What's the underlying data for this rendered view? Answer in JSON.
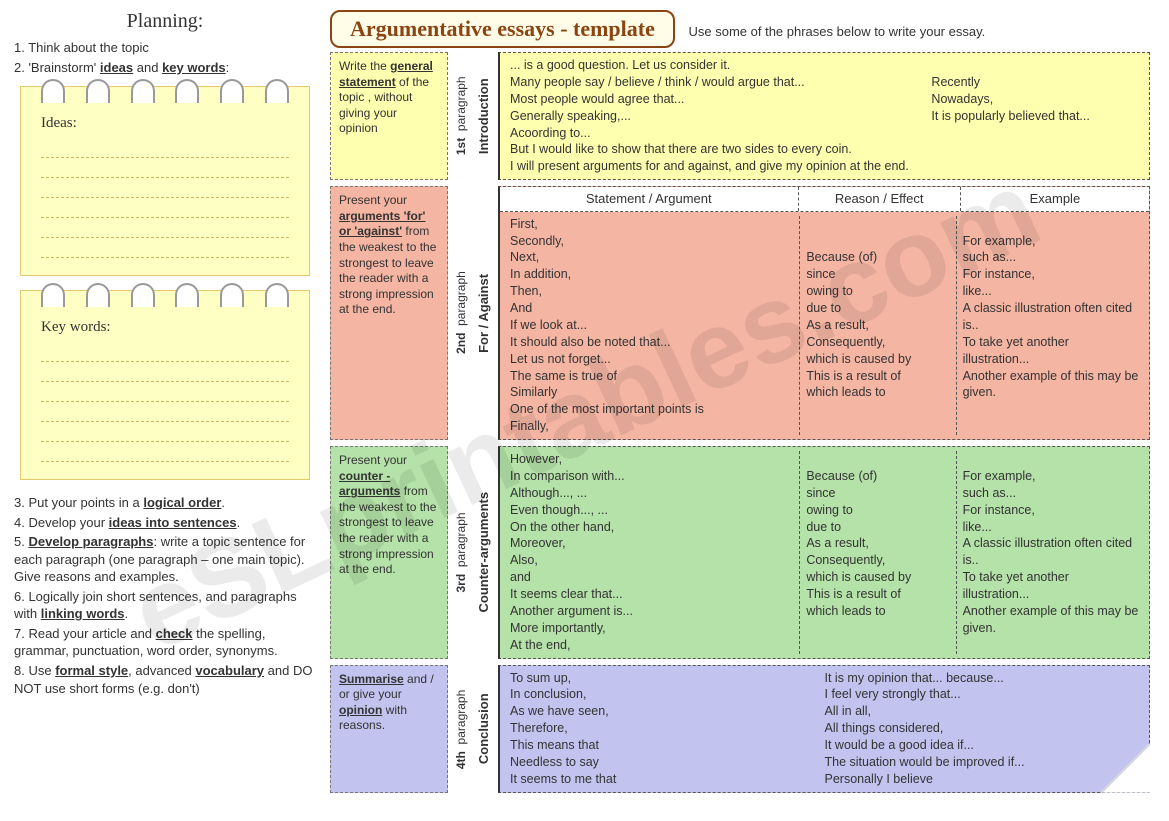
{
  "title": "Argumentative essays - template",
  "subtitle": "Use some of the phrases below to write your essay.",
  "planning": {
    "heading": "Planning:",
    "step1": "1. Think about the topic",
    "step2_pre": "2. 'Brainstorm' ",
    "step2_u1": "ideas",
    "step2_mid": " and ",
    "step2_u2": "key words",
    "step2_post": ":",
    "ideas_label": "Ideas:",
    "keywords_label": "Key words:",
    "step3_pre": "3. Put your points in a ",
    "step3_u": "logical order",
    "step3_post": ".",
    "step4_pre": "4. Develop your ",
    "step4_u": "ideas into sentences",
    "step4_post": ".",
    "step5_num": "5. ",
    "step5_u": "Develop paragraphs",
    "step5_post": ": write a topic sentence for each paragraph (one paragraph – one main topic). Give reasons and examples.",
    "step6_pre": "6. Logically join short sentences, and paragraphs with ",
    "step6_u": "linking words",
    "step6_post": ".",
    "step7_pre": "7. Read your article and ",
    "step7_u": "check",
    "step7_post": " the spelling, grammar, punctuation, word order, synonyms.",
    "step8_pre": "8. Use ",
    "step8_u1": "formal style",
    "step8_mid": ", advanced ",
    "step8_u2": "vocabulary",
    "step8_post": " and DO NOT use short forms (e.g. don't)"
  },
  "instr": {
    "intro_pre": "Write the ",
    "intro_u": "general statement",
    "intro_post": " of the topic , without giving your opinion",
    "for_pre": "Present your ",
    "for_u": "arguments 'for' or 'against'",
    "for_post": " from the weakest to the strongest to leave the reader with a strong impression at the end.",
    "counter_pre": "Present your ",
    "counter_u": "counter - arguments",
    "counter_post": " from the weakest to the strongest to leave the reader with a strong impression at the end.",
    "concl_u1": "Summarise",
    "concl_mid": " and / or give your ",
    "concl_u2": "opinion",
    "concl_post": " with reasons."
  },
  "labels": {
    "p1": "1st",
    "p2": "2nd",
    "p3": "3rd",
    "p4": "4th",
    "para": "paragraph",
    "intro": "Introduction",
    "for": "For / Against",
    "counter": "Counter-arguments",
    "concl": "Conclusion",
    "stmt": "Statement / Argument",
    "reason": "Reason / Effect",
    "example": "Example"
  },
  "intro": {
    "c1l1": "... is a good question. Let us consider it.",
    "c1l2": "Many people say / believe / think / would argue that...",
    "c1l3": "Most people would agree that...",
    "c1l4": "Generally speaking,...",
    "c1l5": "Acoording to...",
    "c1l6": "But I would like to show that there are two sides to every coin.",
    "c1l7": "I will present arguments for and against, and give my opinion at the end.",
    "c2l1": "Recently",
    "c2l2": "Nowadays,",
    "c2l3": "It is popularly believed that..."
  },
  "for": {
    "s": "First,\nSecondly,\nNext,\nIn addition,\nThen,\nAnd\nIf we look at...\nIt should also be noted that...\nLet us not forget...\nThe same is true of\nSimilarly\nOne of the most important points is\nFinally,",
    "r": "\n\nBecause (of)\nsince\nowing to\ndue to\nAs a result,\nConsequently,\nwhich is caused by\nThis is a result of\nwhich leads to",
    "e": "\nFor example,\nsuch as...\nFor instance,\nlike...\nA classic illustration often cited is..\nTo take yet another illustration...\nAnother example of this may be given."
  },
  "counter": {
    "s": "However,\nIn comparison with...\nAlthough..., ...\nEven though..., ...\nOn the other hand,\nMoreover,\nAlso,\nand\nIt seems clear that...\nAnother argument is...\nMore importantly,\nAt the end,",
    "r": "\nBecause (of)\nsince\nowing to\ndue to\nAs a result,\nConsequently,\nwhich is caused by\nThis is a result of\nwhich leads to",
    "e": "\nFor example,\nsuch as...\nFor instance,\nlike...\nA classic illustration often cited is..\nTo take yet another illustration...\nAnother example of this may be given."
  },
  "concl": {
    "c1": "To sum up,\nIn conclusion,\nAs we have seen,\nTherefore,\nThis means that\nNeedless to say\nIt seems to me that",
    "c2": "It is my opinion that... because...\nI feel very strongly that...\nAll in all,\nAll things considered,\nIt would be a good idea if...\nThe situation would be improved if...\nPersonally I believe"
  },
  "colors": {
    "yellow": "#ffffb0",
    "salmon": "#f4b5a3",
    "green": "#b5e2a8",
    "blue": "#c3c3ef"
  },
  "watermark": "eSLprintables.com"
}
